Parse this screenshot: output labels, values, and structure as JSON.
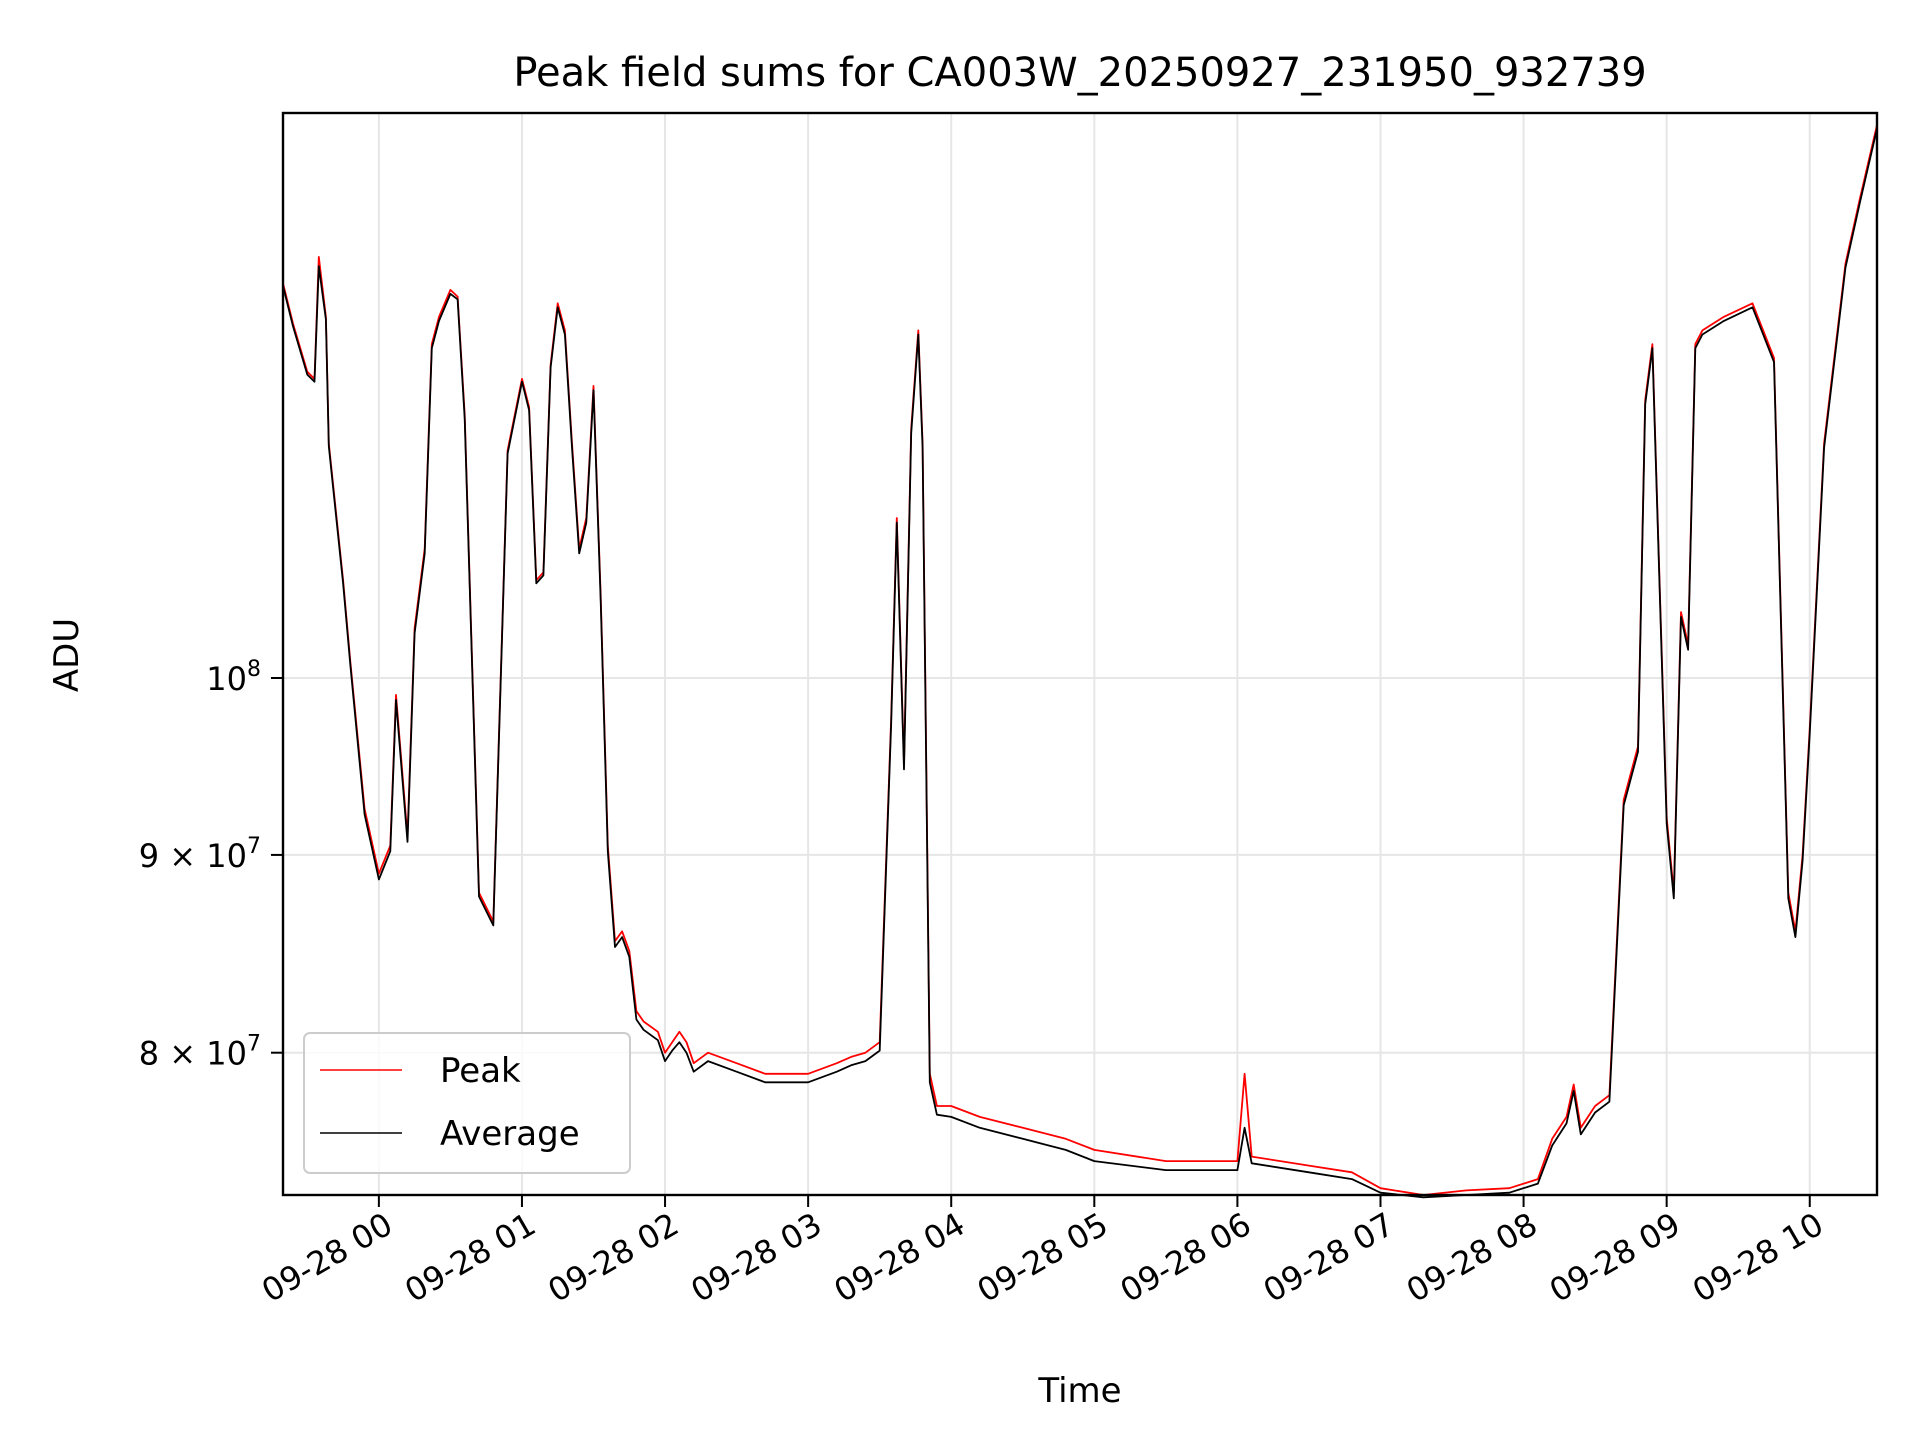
{
  "chart_data": {
    "type": "line",
    "title": "Peak field sums for CA003W_20250927_231950_932739",
    "xlabel": "Time",
    "ylabel": "ADU",
    "y_scale": "log",
    "x_unit": "hours",
    "xlim": [
      -0.67,
      10.47
    ],
    "ylim": [
      73500000,
      140000000
    ],
    "grid": true,
    "legend_position": "lower-left",
    "x_ticks": [
      {
        "value": 0,
        "label": "09-28 00"
      },
      {
        "value": 1,
        "label": "09-28 01"
      },
      {
        "value": 2,
        "label": "09-28 02"
      },
      {
        "value": 3,
        "label": "09-28 03"
      },
      {
        "value": 4,
        "label": "09-28 04"
      },
      {
        "value": 5,
        "label": "09-28 05"
      },
      {
        "value": 6,
        "label": "09-28 06"
      },
      {
        "value": 7,
        "label": "09-28 07"
      },
      {
        "value": 8,
        "label": "09-28 08"
      },
      {
        "value": 9,
        "label": "09-28 09"
      },
      {
        "value": 10,
        "label": "09-28 10"
      }
    ],
    "y_ticks": [
      {
        "value": 100000000,
        "base": "10",
        "exp": "8",
        "mantissa": ""
      },
      {
        "value": 90000000,
        "base": "10",
        "exp": "7",
        "mantissa": "9 × "
      },
      {
        "value": 80000000,
        "base": "10",
        "exp": "7",
        "mantissa": "8 × "
      }
    ],
    "series": [
      {
        "name": "Peak",
        "color": "#ff0000",
        "x": [
          -0.67,
          -0.6,
          -0.5,
          -0.45,
          -0.42,
          -0.37,
          -0.35,
          -0.25,
          -0.2,
          -0.1,
          0.0,
          0.08,
          0.12,
          0.2,
          0.25,
          0.32,
          0.37,
          0.42,
          0.5,
          0.55,
          0.6,
          0.7,
          0.8,
          0.9,
          1.0,
          1.05,
          1.1,
          1.15,
          1.2,
          1.25,
          1.3,
          1.35,
          1.4,
          1.45,
          1.5,
          1.55,
          1.6,
          1.65,
          1.7,
          1.75,
          1.8,
          1.85,
          1.95,
          2.0,
          2.05,
          2.1,
          2.15,
          2.2,
          2.3,
          2.5,
          2.7,
          3.0,
          3.2,
          3.3,
          3.4,
          3.5,
          3.58,
          3.62,
          3.67,
          3.72,
          3.77,
          3.8,
          3.85,
          3.9,
          4.0,
          4.2,
          4.5,
          4.8,
          5.0,
          5.5,
          6.0,
          6.05,
          6.1,
          6.5,
          6.8,
          7.0,
          7.3,
          7.6,
          7.9,
          8.1,
          8.2,
          8.3,
          8.35,
          8.4,
          8.5,
          8.6,
          8.7,
          8.8,
          8.85,
          8.9,
          9.0,
          9.05,
          9.1,
          9.15,
          9.2,
          9.25,
          9.4,
          9.6,
          9.75,
          9.85,
          9.9,
          9.95,
          10.0,
          10.1,
          10.25,
          10.35,
          10.47
        ],
        "y": [
          126500000,
          123500000,
          120000000,
          119500000,
          128500000,
          124000000,
          115000000,
          106000000,
          101000000,
          92500000,
          89000000,
          90500000,
          99000000,
          91000000,
          103000000,
          108000000,
          122000000,
          124000000,
          126000000,
          125500000,
          117000000,
          88000000,
          86500000,
          114500000,
          119500000,
          117500000,
          106000000,
          106500000,
          120500000,
          125000000,
          123000000,
          115000000,
          108000000,
          110000000,
          119000000,
          105000000,
          90500000,
          85500000,
          86000000,
          85000000,
          82000000,
          81500000,
          81000000,
          80000000,
          80500000,
          81000000,
          80500000,
          79500000,
          80000000,
          79500000,
          79000000,
          79000000,
          79500000,
          79800000,
          80000000,
          80500000,
          97500000,
          110000000,
          95000000,
          116000000,
          123000000,
          115000000,
          79000000,
          77500000,
          77500000,
          77000000,
          76500000,
          76000000,
          75500000,
          75000000,
          75000000,
          79000000,
          75200000,
          74800000,
          74500000,
          73800000,
          73500000,
          73700000,
          73800000,
          74200000,
          76000000,
          77000000,
          78500000,
          76500000,
          77500000,
          78000000,
          93000000,
          96000000,
          118000000,
          122000000,
          92000000,
          88000000,
          104000000,
          102000000,
          122000000,
          123000000,
          124000000,
          125000000,
          121000000,
          88000000,
          86000000,
          90000000,
          97000000,
          115000000,
          128000000,
          133000000,
          139000000
        ]
      },
      {
        "name": "Average",
        "color": "#000000",
        "x": [
          -0.67,
          -0.6,
          -0.5,
          -0.45,
          -0.42,
          -0.37,
          -0.35,
          -0.25,
          -0.2,
          -0.1,
          0.0,
          0.08,
          0.12,
          0.2,
          0.25,
          0.32,
          0.37,
          0.42,
          0.5,
          0.55,
          0.6,
          0.7,
          0.8,
          0.9,
          1.0,
          1.05,
          1.1,
          1.15,
          1.2,
          1.25,
          1.3,
          1.35,
          1.4,
          1.45,
          1.5,
          1.55,
          1.6,
          1.65,
          1.7,
          1.75,
          1.8,
          1.85,
          1.95,
          2.0,
          2.05,
          2.1,
          2.15,
          2.2,
          2.3,
          2.5,
          2.7,
          3.0,
          3.2,
          3.3,
          3.4,
          3.5,
          3.58,
          3.62,
          3.67,
          3.72,
          3.77,
          3.8,
          3.85,
          3.9,
          4.0,
          4.2,
          4.5,
          4.8,
          5.0,
          5.5,
          6.0,
          6.05,
          6.1,
          6.5,
          6.8,
          7.0,
          7.3,
          7.6,
          7.9,
          8.1,
          8.2,
          8.3,
          8.35,
          8.4,
          8.5,
          8.6,
          8.7,
          8.8,
          8.85,
          8.9,
          9.0,
          9.05,
          9.1,
          9.15,
          9.2,
          9.25,
          9.4,
          9.6,
          9.75,
          9.85,
          9.9,
          9.95,
          10.0,
          10.1,
          10.25,
          10.35,
          10.47
        ],
        "y": [
          126300000,
          123300000,
          119800000,
          119300000,
          127800000,
          123800000,
          114800000,
          105800000,
          100800000,
          92200000,
          88700000,
          90200000,
          98700000,
          90700000,
          102700000,
          107700000,
          121700000,
          123700000,
          125700000,
          125300000,
          116700000,
          87800000,
          86300000,
          114300000,
          119300000,
          117300000,
          105800000,
          106300000,
          120300000,
          124700000,
          122700000,
          114700000,
          107700000,
          109700000,
          118700000,
          104700000,
          90200000,
          85200000,
          85700000,
          84700000,
          81600000,
          81100000,
          80600000,
          79600000,
          80100000,
          80500000,
          80000000,
          79100000,
          79600000,
          79100000,
          78600000,
          78600000,
          79100000,
          79400000,
          79600000,
          80100000,
          97200000,
          109700000,
          94700000,
          115700000,
          122700000,
          114700000,
          78600000,
          77100000,
          77000000,
          76500000,
          76000000,
          75500000,
          75000000,
          74600000,
          74600000,
          76500000,
          74900000,
          74500000,
          74200000,
          73600000,
          73400000,
          73500000,
          73600000,
          74000000,
          75700000,
          76700000,
          78200000,
          76200000,
          77200000,
          77700000,
          92700000,
          95700000,
          117700000,
          121700000,
          91700000,
          87700000,
          103700000,
          101700000,
          121700000,
          122700000,
          123700000,
          124700000,
          120700000,
          87700000,
          85700000,
          89700000,
          96700000,
          114700000,
          127700000,
          132700000,
          138700000
        ]
      }
    ]
  }
}
